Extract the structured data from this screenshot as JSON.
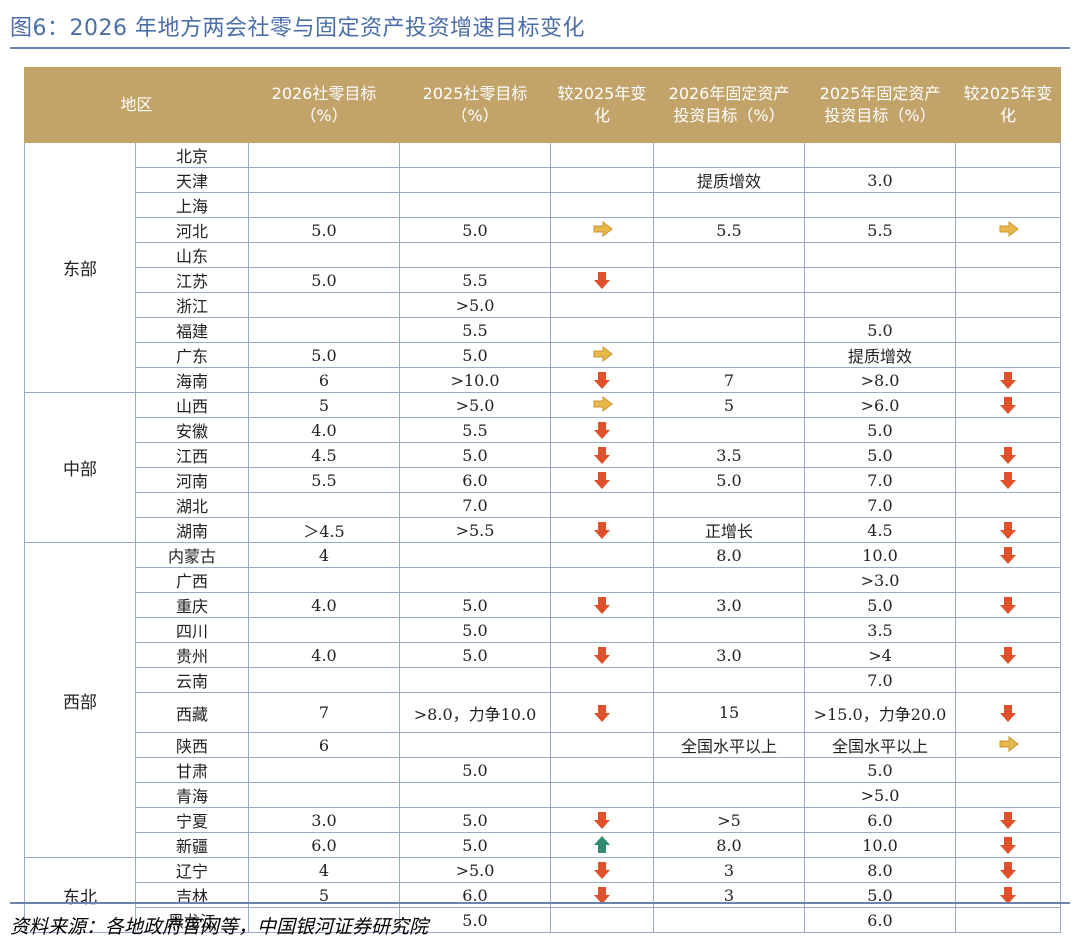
{
  "title": "图6：2026 年地方两会社零与固定资产投资增速目标变化",
  "headers": {
    "region": "地区",
    "retail_2026": [
      "2026社零目标",
      "（%）"
    ],
    "retail_2025": [
      "2025社零目标",
      "（%）"
    ],
    "retail_change": [
      "较2025年变",
      "化"
    ],
    "fai_2026": [
      "2026年固定资产",
      "投资目标（%）"
    ],
    "fai_2025": [
      "2025年固定资产",
      "投资目标（%）"
    ],
    "fai_change": [
      "较2025年变",
      "化"
    ]
  },
  "regions": [
    {
      "name": "东部",
      "rows": [
        {
          "city": "北京",
          "r26": "",
          "r25": "",
          "rc": "",
          "f26": "",
          "f25": "",
          "fc": ""
        },
        {
          "city": "天津",
          "r26": "",
          "r25": "",
          "rc": "",
          "f26": "提质增效",
          "f25": "3.0",
          "fc": ""
        },
        {
          "city": "上海",
          "r26": "",
          "r25": "",
          "rc": "",
          "f26": "",
          "f25": "",
          "fc": ""
        },
        {
          "city": "河北",
          "r26": "5.0",
          "r25": "5.0",
          "rc": "flat",
          "f26": "5.5",
          "f25": "5.5",
          "fc": "flat"
        },
        {
          "city": "山东",
          "r26": "",
          "r25": "",
          "rc": "",
          "f26": "",
          "f25": "",
          "fc": ""
        },
        {
          "city": "江苏",
          "r26": "5.0",
          "r25": "5.5",
          "rc": "down",
          "f26": "",
          "f25": "",
          "fc": ""
        },
        {
          "city": "浙江",
          "r26": "",
          "r25": ">5.0",
          "rc": "",
          "f26": "",
          "f25": "",
          "fc": ""
        },
        {
          "city": "福建",
          "r26": "",
          "r25": "5.5",
          "rc": "",
          "f26": "",
          "f25": "5.0",
          "fc": ""
        },
        {
          "city": "广东",
          "r26": "5.0",
          "r25": "5.0",
          "rc": "flat",
          "f26": "",
          "f25": "提质增效",
          "fc": ""
        },
        {
          "city": "海南",
          "r26": "6",
          "r25": ">10.0",
          "rc": "down",
          "f26": "7",
          "f25": ">8.0",
          "fc": "down"
        }
      ]
    },
    {
      "name": "中部",
      "rows": [
        {
          "city": "山西",
          "r26": "5",
          "r25": ">5.0",
          "rc": "flat",
          "f26": "5",
          "f25": ">6.0",
          "fc": "down"
        },
        {
          "city": "安徽",
          "r26": "4.0",
          "r25": "5.5",
          "rc": "down",
          "f26": "",
          "f25": "5.0",
          "fc": ""
        },
        {
          "city": "江西",
          "r26": "4.5",
          "r25": "5.0",
          "rc": "down",
          "f26": "3.5",
          "f25": "5.0",
          "fc": "down"
        },
        {
          "city": "河南",
          "r26": "5.5",
          "r25": "6.0",
          "rc": "down",
          "f26": "5.0",
          "f25": "7.0",
          "fc": "down"
        },
        {
          "city": "湖北",
          "r26": "",
          "r25": "7.0",
          "rc": "",
          "f26": "",
          "f25": "7.0",
          "fc": ""
        },
        {
          "city": "湖南",
          "r26": "＞4.5",
          "r25": ">5.5",
          "rc": "down",
          "f26": "正增长",
          "f25": "4.5",
          "fc": "down"
        }
      ]
    },
    {
      "name": "西部",
      "rows": [
        {
          "city": "内蒙古",
          "r26": "4",
          "r25": "",
          "rc": "",
          "f26": "8.0",
          "f25": "10.0",
          "fc": "down"
        },
        {
          "city": "广西",
          "r26": "",
          "r25": "",
          "rc": "",
          "f26": "",
          "f25": ">3.0",
          "fc": ""
        },
        {
          "city": "重庆",
          "r26": "4.0",
          "r25": "5.0",
          "rc": "down",
          "f26": "3.0",
          "f25": "5.0",
          "fc": "down"
        },
        {
          "city": "四川",
          "r26": "",
          "r25": "5.0",
          "rc": "",
          "f26": "",
          "f25": "3.5",
          "fc": ""
        },
        {
          "city": "贵州",
          "r26": "4.0",
          "r25": "5.0",
          "rc": "down",
          "f26": "3.0",
          "f25": ">4",
          "fc": "down"
        },
        {
          "city": "云南",
          "r26": "",
          "r25": "",
          "rc": "",
          "f26": "",
          "f25": "7.0",
          "fc": ""
        },
        {
          "city": "西藏",
          "r26": "7",
          "r25": ">8.0，力争10.0",
          "rc": "down",
          "f26": "15",
          "f25": ">15.0，力争20.0",
          "fc": "down",
          "tall": true
        },
        {
          "city": "陕西",
          "r26": "6",
          "r25": "",
          "rc": "",
          "f26": "全国水平以上",
          "f25": "全国水平以上",
          "fc": "flat"
        },
        {
          "city": "甘肃",
          "r26": "",
          "r25": "5.0",
          "rc": "",
          "f26": "",
          "f25": "5.0",
          "fc": ""
        },
        {
          "city": "青海",
          "r26": "",
          "r25": "",
          "rc": "",
          "f26": "",
          "f25": ">5.0",
          "fc": ""
        },
        {
          "city": "宁夏",
          "r26": "3.0",
          "r25": "5.0",
          "rc": "down",
          "f26": ">5",
          "f25": "6.0",
          "fc": "down"
        },
        {
          "city": "新疆",
          "r26": "6.0",
          "r25": "5.0",
          "rc": "up",
          "f26": "8.0",
          "f25": "10.0",
          "fc": "down"
        }
      ]
    },
    {
      "name": "东北",
      "rows": [
        {
          "city": "辽宁",
          "r26": "4",
          "r25": ">5.0",
          "rc": "down",
          "f26": "3",
          "f25": "8.0",
          "fc": "down"
        },
        {
          "city": "吉林",
          "r26": "5",
          "r25": "6.0",
          "rc": "down",
          "f26": "3",
          "f25": "5.0",
          "fc": "down"
        },
        {
          "city": "黑龙江",
          "r26": "",
          "r25": "5.0",
          "rc": "",
          "f26": "",
          "f25": "6.0",
          "fc": ""
        }
      ]
    }
  ],
  "arrow_colors": {
    "down": "#e0502a",
    "flat": "#e8b84b",
    "up": "#2e8b6b"
  },
  "header_color": "#c2a46b",
  "source": "资料来源：各地政府官网等，中国银河证券研究院"
}
